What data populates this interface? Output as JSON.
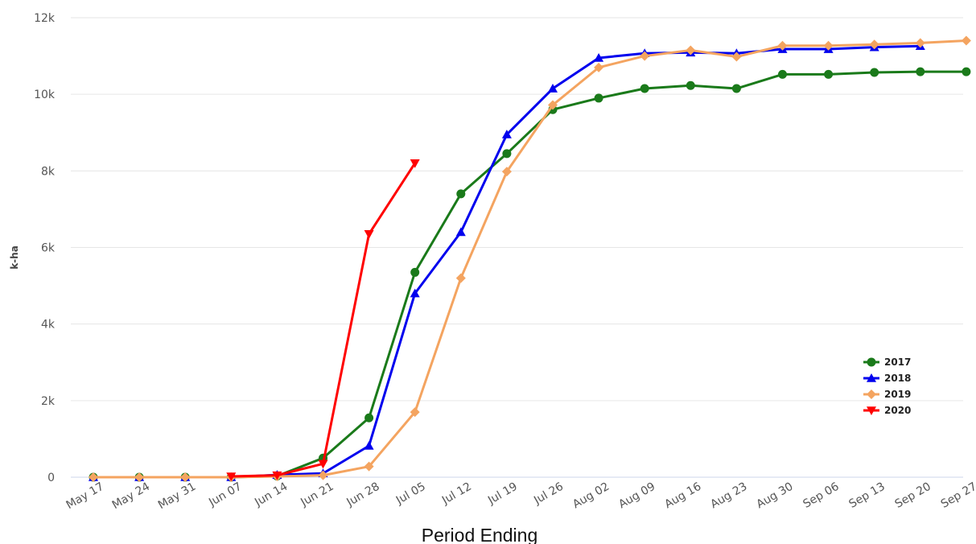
{
  "chart_data": {
    "type": "line",
    "title": "",
    "xlabel": "Period Ending",
    "ylabel": "k-ha",
    "ylim": [
      0,
      12000
    ],
    "y_ticks": [
      {
        "value": 0,
        "label": "0"
      },
      {
        "value": 2000,
        "label": "2k"
      },
      {
        "value": 4000,
        "label": "4k"
      },
      {
        "value": 6000,
        "label": "6k"
      },
      {
        "value": 8000,
        "label": "8k"
      },
      {
        "value": 10000,
        "label": "10k"
      },
      {
        "value": 12000,
        "label": "12k"
      }
    ],
    "categories": [
      "May 17",
      "May 24",
      "May 31",
      "Jun 07",
      "Jun 14",
      "Jun 21",
      "Jun 28",
      "Jul 05",
      "Jul 12",
      "Jul 19",
      "Jul 26",
      "Aug 02",
      "Aug 09",
      "Aug 16",
      "Aug 23",
      "Aug 30",
      "Sep 06",
      "Sep 13",
      "Sep 20",
      "Sep 27"
    ],
    "grid": true,
    "legend_position": "right",
    "series": [
      {
        "name": "2017",
        "color": "#1a7a1a",
        "marker": "circle",
        "values": [
          0,
          0,
          0,
          0,
          30,
          500,
          1550,
          5350,
          7400,
          8450,
          9600,
          9900,
          10150,
          10230,
          10150,
          10520,
          10520,
          10570,
          10590,
          10590
        ]
      },
      {
        "name": "2018",
        "color": "#0000ee",
        "marker": "triangle-up",
        "values": [
          0,
          0,
          0,
          0,
          60,
          100,
          820,
          4800,
          6400,
          8950,
          10150,
          10950,
          11070,
          11090,
          11070,
          11180,
          11180,
          11230,
          11260,
          null
        ]
      },
      {
        "name": "2019",
        "color": "#f4a460",
        "marker": "diamond",
        "values": [
          0,
          0,
          0,
          0,
          20,
          50,
          280,
          1700,
          5200,
          7980,
          9720,
          10700,
          11000,
          11150,
          10980,
          11270,
          11270,
          11300,
          11340,
          11400
        ]
      },
      {
        "name": "2020",
        "color": "#ff0000",
        "marker": "triangle-down",
        "values": [
          null,
          null,
          null,
          20,
          50,
          350,
          6350,
          8200,
          null,
          null,
          null,
          null,
          null,
          null,
          null,
          null,
          null,
          null,
          null,
          null
        ]
      }
    ]
  }
}
